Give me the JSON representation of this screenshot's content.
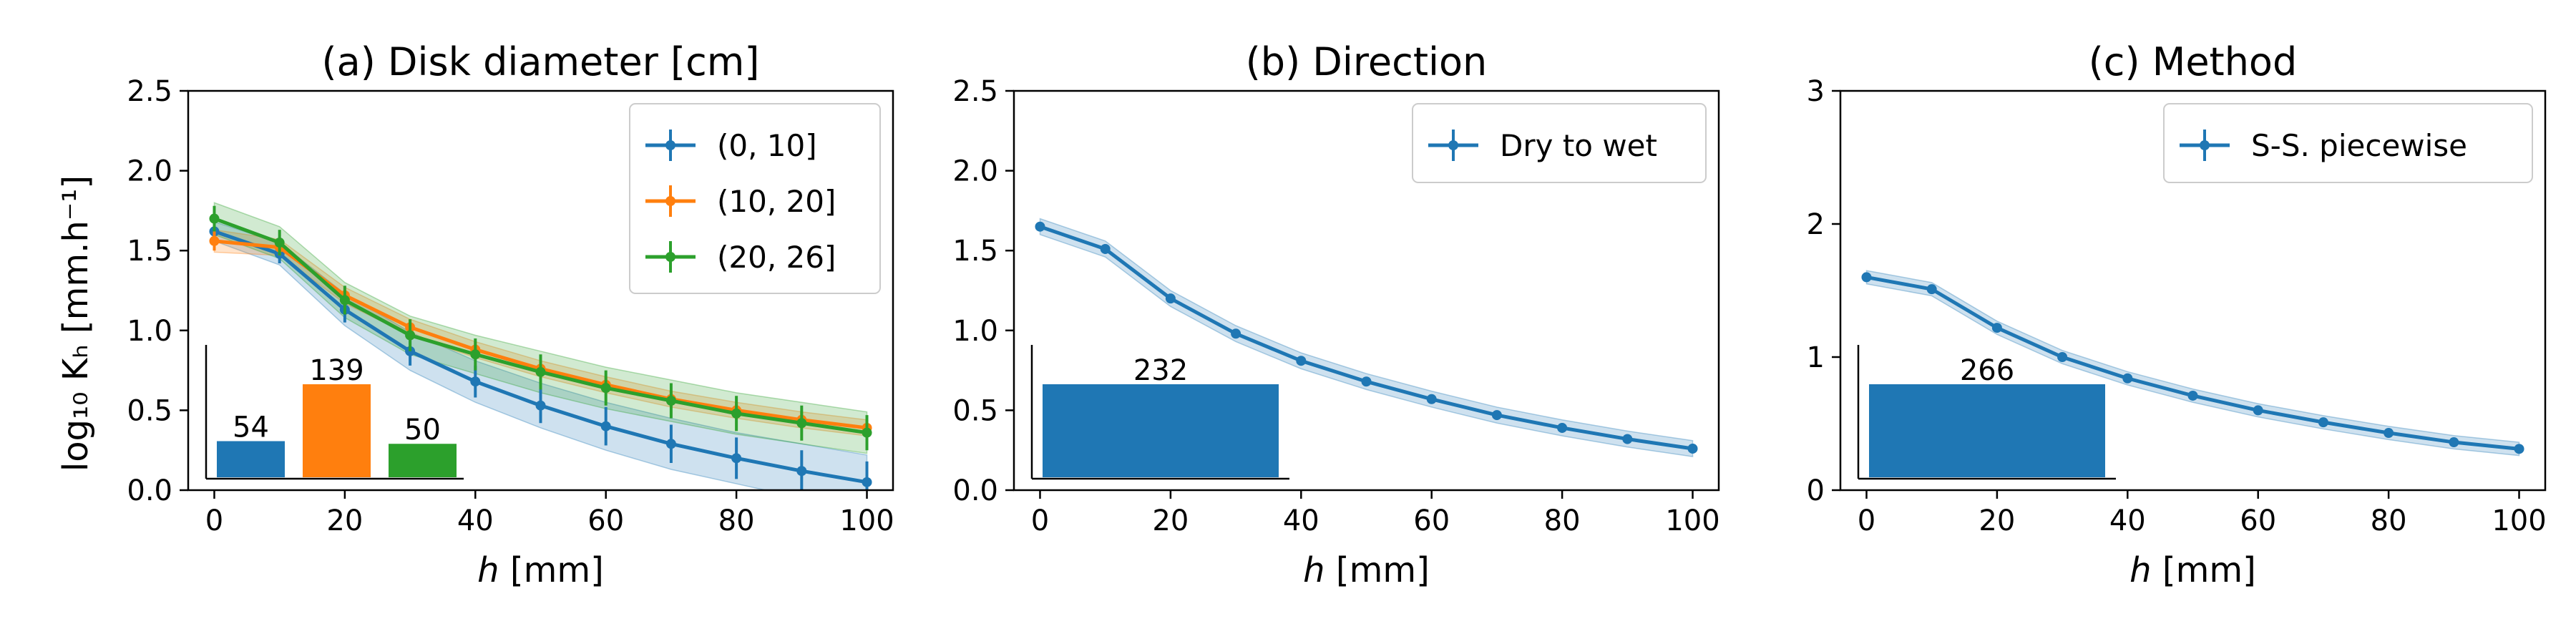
{
  "figure": {
    "ylabel": "log10 Kh [mm.h-1]"
  },
  "chart_data": [
    {
      "type": "line",
      "title": "(a) Disk diameter [cm]",
      "xlabel": "h [mm]",
      "ylabel": "log₁₀ Kₕ [mm.h⁻¹]",
      "xlim": [
        -4,
        104
      ],
      "ylim": [
        0,
        2.5
      ],
      "xticks": [
        0,
        20,
        40,
        60,
        80,
        100
      ],
      "yticks": [
        0,
        0.5,
        1.0,
        1.5,
        2.0,
        2.5
      ],
      "ytick_labels": [
        "0.0",
        "0.5",
        "1.0",
        "1.5",
        "2.0",
        "2.5"
      ],
      "legend_position": "top-right",
      "grid": false,
      "x": [
        0,
        10,
        20,
        30,
        40,
        50,
        60,
        70,
        80,
        90,
        100
      ],
      "series": [
        {
          "name": "(0, 10]",
          "color": "#1f77b4",
          "values": [
            1.62,
            1.48,
            1.13,
            0.87,
            0.68,
            0.53,
            0.4,
            0.29,
            0.2,
            0.12,
            0.05
          ],
          "err": [
            0.05,
            0.06,
            0.08,
            0.09,
            0.1,
            0.11,
            0.12,
            0.12,
            0.13,
            0.13,
            0.13
          ],
          "band": [
            0.06,
            0.07,
            0.1,
            0.12,
            0.13,
            0.14,
            0.15,
            0.16,
            0.16,
            0.17,
            0.17
          ]
        },
        {
          "name": "(10, 20]",
          "color": "#ff7f0e",
          "values": [
            1.56,
            1.52,
            1.22,
            1.02,
            0.88,
            0.76,
            0.66,
            0.57,
            0.5,
            0.44,
            0.39
          ],
          "err": [
            0.06,
            0.05,
            0.05,
            0.05,
            0.05,
            0.05,
            0.05,
            0.05,
            0.05,
            0.05,
            0.05
          ],
          "band": [
            0.07,
            0.05,
            0.05,
            0.05,
            0.05,
            0.05,
            0.05,
            0.05,
            0.05,
            0.05,
            0.05
          ]
        },
        {
          "name": "(20, 26]",
          "color": "#2ca02c",
          "values": [
            1.7,
            1.55,
            1.19,
            0.97,
            0.85,
            0.74,
            0.64,
            0.56,
            0.48,
            0.42,
            0.36
          ],
          "err": [
            0.08,
            0.08,
            0.09,
            0.1,
            0.1,
            0.11,
            0.11,
            0.11,
            0.11,
            0.11,
            0.11
          ],
          "band": [
            0.1,
            0.1,
            0.11,
            0.12,
            0.12,
            0.13,
            0.13,
            0.13,
            0.13,
            0.13,
            0.13
          ]
        }
      ],
      "inset": {
        "type": "bar",
        "values": [
          54,
          139,
          50
        ],
        "labels": [
          "54",
          "139",
          "50"
        ],
        "colors": [
          "#1f77b4",
          "#ff7f0e",
          "#2ca02c"
        ]
      }
    },
    {
      "type": "line",
      "title": "(b) Direction",
      "xlabel": "h [mm]",
      "xlim": [
        -4,
        104
      ],
      "ylim": [
        0,
        2.5
      ],
      "xticks": [
        0,
        20,
        40,
        60,
        80,
        100
      ],
      "yticks": [
        0,
        0.5,
        1.0,
        1.5,
        2.0,
        2.5
      ],
      "ytick_labels": [
        "0.0",
        "0.5",
        "1.0",
        "1.5",
        "2.0",
        "2.5"
      ],
      "legend_position": "top-right",
      "grid": false,
      "x": [
        0,
        10,
        20,
        30,
        40,
        50,
        60,
        70,
        80,
        90,
        100
      ],
      "series": [
        {
          "name": "Dry to wet",
          "color": "#1f77b4",
          "values": [
            1.65,
            1.51,
            1.2,
            0.98,
            0.81,
            0.68,
            0.57,
            0.47,
            0.39,
            0.32,
            0.26
          ],
          "err": [
            0.03,
            0.03,
            0.03,
            0.03,
            0.03,
            0.03,
            0.03,
            0.03,
            0.03,
            0.03,
            0.03
          ],
          "band": [
            0.05,
            0.05,
            0.05,
            0.05,
            0.05,
            0.05,
            0.05,
            0.05,
            0.05,
            0.05,
            0.05
          ]
        }
      ],
      "inset": {
        "type": "bar",
        "values": [
          232
        ],
        "labels": [
          "232"
        ],
        "colors": [
          "#1f77b4"
        ]
      }
    },
    {
      "type": "line",
      "title": "(c) Method",
      "xlabel": "h [mm]",
      "xlim": [
        -4,
        104
      ],
      "ylim": [
        0,
        3
      ],
      "xticks": [
        0,
        20,
        40,
        60,
        80,
        100
      ],
      "yticks": [
        0,
        1,
        2,
        3
      ],
      "ytick_labels": [
        "0",
        "1",
        "2",
        "3"
      ],
      "legend_position": "top-right",
      "grid": false,
      "x": [
        0,
        10,
        20,
        30,
        40,
        50,
        60,
        70,
        80,
        90,
        100
      ],
      "series": [
        {
          "name": "S-S. piecewise",
          "color": "#1f77b4",
          "values": [
            1.6,
            1.51,
            1.22,
            1.0,
            0.84,
            0.71,
            0.6,
            0.51,
            0.43,
            0.36,
            0.31
          ],
          "err": [
            0.03,
            0.03,
            0.03,
            0.03,
            0.03,
            0.03,
            0.03,
            0.03,
            0.03,
            0.03,
            0.03
          ],
          "band": [
            0.05,
            0.05,
            0.05,
            0.05,
            0.05,
            0.05,
            0.05,
            0.05,
            0.05,
            0.05,
            0.05
          ]
        }
      ],
      "inset": {
        "type": "bar",
        "values": [
          266
        ],
        "labels": [
          "266"
        ],
        "colors": [
          "#1f77b4"
        ]
      }
    }
  ]
}
